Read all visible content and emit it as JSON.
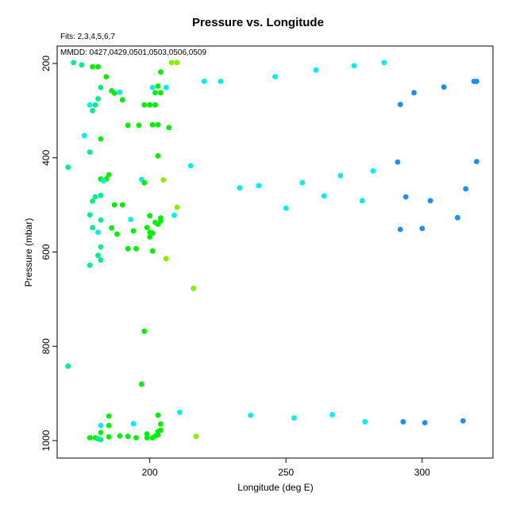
{
  "chart_data": {
    "type": "scatter",
    "title": "Pressure vs. Longitude",
    "subtitle": "Fits: 2,3,4,5,6,7",
    "annotation": "MMDD: 0427,0429,0501,0503,0506,0509",
    "xlabel": "Longitude (deg E)",
    "ylabel": "Pressure (mbar)",
    "xlim": [
      166,
      326
    ],
    "ylim": [
      1037,
      163
    ],
    "y_inverted": true,
    "xticks": [
      200,
      250,
      300
    ],
    "yticks": [
      200,
      400,
      600,
      800,
      1000
    ],
    "grid": false,
    "colors": {
      "green": "#00ee00",
      "green_alt": "#11e811",
      "yellowgreen": "#88ee00",
      "springgreen": "#00ee88",
      "cyan": "#00eeee",
      "skyblue": "#00c8ee",
      "blue": "#1a90f0",
      "axis": "#000000"
    },
    "points": [
      [
        172,
        198,
        "springgreen"
      ],
      [
        175,
        203,
        "springgreen"
      ],
      [
        179,
        207,
        "green"
      ],
      [
        181,
        207,
        "green"
      ],
      [
        184,
        228,
        "green"
      ],
      [
        182,
        251,
        "springgreen"
      ],
      [
        186,
        258,
        "green"
      ],
      [
        187,
        263,
        "green"
      ],
      [
        189,
        261,
        "cyan"
      ],
      [
        190,
        277,
        "green"
      ],
      [
        178,
        288,
        "cyan"
      ],
      [
        180,
        288,
        "springgreen"
      ],
      [
        179,
        300,
        "springgreen"
      ],
      [
        181,
        275,
        "springgreen"
      ],
      [
        176,
        353,
        "cyan"
      ],
      [
        182,
        360,
        "green"
      ],
      [
        192,
        331,
        "green"
      ],
      [
        196,
        331,
        "green"
      ],
      [
        198,
        288,
        "green"
      ],
      [
        200,
        288,
        "green"
      ],
      [
        202,
        288,
        "green"
      ],
      [
        202,
        262,
        "green"
      ],
      [
        204,
        262,
        "green"
      ],
      [
        203,
        248,
        "green"
      ],
      [
        204,
        218,
        "green"
      ],
      [
        208,
        198,
        "yellowgreen"
      ],
      [
        210,
        198,
        "yellowgreen"
      ],
      [
        201,
        251,
        "cyan"
      ],
      [
        206,
        251,
        "cyan"
      ],
      [
        201,
        330,
        "green"
      ],
      [
        203,
        330,
        "green"
      ],
      [
        207,
        336,
        "green"
      ],
      [
        203,
        396,
        "green"
      ],
      [
        178,
        388,
        "springgreen"
      ],
      [
        170,
        420,
        "springgreen"
      ],
      [
        182,
        445,
        "green"
      ],
      [
        184,
        445,
        "green"
      ],
      [
        185,
        436,
        "green"
      ],
      [
        182,
        480,
        "springgreen"
      ],
      [
        180,
        483,
        "springgreen"
      ],
      [
        179,
        492,
        "springgreen"
      ],
      [
        183,
        449,
        "cyan"
      ],
      [
        178,
        521,
        "springgreen"
      ],
      [
        182,
        532,
        "springgreen"
      ],
      [
        179,
        548,
        "springgreen"
      ],
      [
        181,
        558,
        "cyan"
      ],
      [
        182,
        589,
        "springgreen"
      ],
      [
        181,
        607,
        "springgreen"
      ],
      [
        182,
        617,
        "springgreen"
      ],
      [
        178,
        628,
        "springgreen"
      ],
      [
        187,
        500,
        "green"
      ],
      [
        190,
        500,
        "green"
      ],
      [
        186,
        549,
        "green"
      ],
      [
        188,
        562,
        "green"
      ],
      [
        192,
        593,
        "green"
      ],
      [
        194,
        555,
        "green"
      ],
      [
        193,
        531,
        "cyan"
      ],
      [
        195,
        593,
        "green"
      ],
      [
        197,
        446,
        "cyan"
      ],
      [
        198,
        453,
        "green"
      ],
      [
        199,
        548,
        "green"
      ],
      [
        200,
        523,
        "green"
      ],
      [
        200,
        558,
        "green"
      ],
      [
        201,
        560,
        "green"
      ],
      [
        200,
        568,
        "green"
      ],
      [
        201,
        598,
        "green"
      ],
      [
        202,
        537,
        "green"
      ],
      [
        203,
        541,
        "green"
      ],
      [
        204,
        528,
        "green"
      ],
      [
        204,
        534,
        "green"
      ],
      [
        205,
        447,
        "yellowgreen"
      ],
      [
        206,
        614,
        "yellowgreen"
      ],
      [
        210,
        505,
        "yellowgreen"
      ],
      [
        209,
        522,
        "cyan"
      ],
      [
        215,
        417,
        "cyan"
      ],
      [
        216,
        677,
        "yellowgreen"
      ],
      [
        198,
        768,
        "green"
      ],
      [
        197,
        880,
        "green"
      ],
      [
        170,
        842,
        "springgreen"
      ],
      [
        220,
        238,
        "cyan"
      ],
      [
        226,
        238,
        "cyan"
      ],
      [
        246,
        228,
        "cyan"
      ],
      [
        261,
        214,
        "cyan"
      ],
      [
        275,
        205,
        "cyan"
      ],
      [
        286,
        198,
        "cyan"
      ],
      [
        233,
        464,
        "cyan"
      ],
      [
        240,
        459,
        "cyan"
      ],
      [
        250,
        507,
        "cyan"
      ],
      [
        256,
        453,
        "cyan"
      ],
      [
        264,
        481,
        "cyan"
      ],
      [
        270,
        438,
        "cyan"
      ],
      [
        278,
        491,
        "cyan"
      ],
      [
        282,
        428,
        "cyan"
      ],
      [
        292,
        287,
        "blue"
      ],
      [
        297,
        262,
        "blue"
      ],
      [
        308,
        250,
        "blue"
      ],
      [
        319,
        238,
        "blue"
      ],
      [
        320,
        238,
        "blue"
      ],
      [
        291,
        409,
        "blue"
      ],
      [
        294,
        483,
        "blue"
      ],
      [
        292,
        552,
        "blue"
      ],
      [
        300,
        550,
        "blue"
      ],
      [
        303,
        491,
        "blue"
      ],
      [
        313,
        527,
        "blue"
      ],
      [
        316,
        466,
        "blue"
      ],
      [
        320,
        408,
        "blue"
      ],
      [
        178,
        994,
        "green"
      ],
      [
        180,
        994,
        "green"
      ],
      [
        181,
        996,
        "springgreen"
      ],
      [
        182,
        998,
        "springgreen"
      ],
      [
        182,
        983,
        "green"
      ],
      [
        182,
        968,
        "cyan"
      ],
      [
        185,
        992,
        "green"
      ],
      [
        185,
        968,
        "green"
      ],
      [
        185,
        948,
        "green"
      ],
      [
        189,
        990,
        "green"
      ],
      [
        192,
        991,
        "green"
      ],
      [
        194,
        964,
        "cyan"
      ],
      [
        195,
        994,
        "green"
      ],
      [
        199,
        986,
        "green"
      ],
      [
        199,
        994,
        "green"
      ],
      [
        201,
        994,
        "green"
      ],
      [
        202,
        990,
        "green"
      ],
      [
        203,
        988,
        "green"
      ],
      [
        203,
        981,
        "green"
      ],
      [
        204,
        978,
        "green"
      ],
      [
        204,
        965,
        "green"
      ],
      [
        203,
        946,
        "green"
      ],
      [
        211,
        940,
        "cyan"
      ],
      [
        217,
        991,
        "yellowgreen"
      ],
      [
        237,
        946,
        "cyan"
      ],
      [
        253,
        952,
        "cyan"
      ],
      [
        267,
        945,
        "cyan"
      ],
      [
        279,
        960,
        "cyan"
      ],
      [
        293,
        960,
        "blue"
      ],
      [
        301,
        962,
        "blue"
      ],
      [
        315,
        958,
        "blue"
      ]
    ]
  }
}
